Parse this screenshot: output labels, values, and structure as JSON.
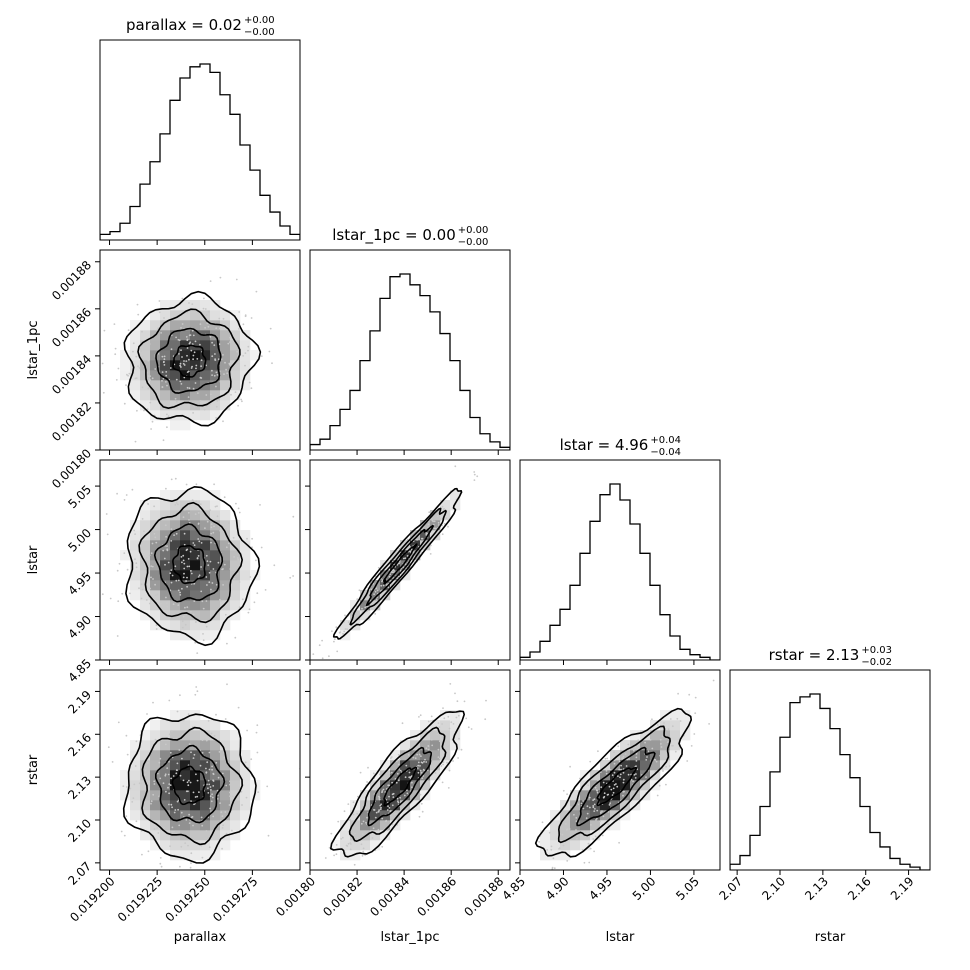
{
  "chart_data": {
    "type": "corner",
    "parameters": [
      {
        "key": "parallax",
        "label": "parallax",
        "title": "parallax = 0.02",
        "sup": "+0.00",
        "sub": "−0.00",
        "range": [
          0.019195,
          0.0193
        ],
        "ticks": [
          0.0192,
          0.019225,
          0.01925,
          0.019275
        ],
        "tick_labels": [
          "0.019200",
          "0.019225",
          "0.019250",
          "0.019275"
        ],
        "mean": 0.019242,
        "sd": 1.45e-05
      },
      {
        "key": "lstar_1pc",
        "label": "lstar_1pc",
        "title": "lstar_1pc = 0.00",
        "sup": "+0.00",
        "sub": "−0.00",
        "range": [
          0.0018,
          0.001885
        ],
        "ticks": [
          0.0018,
          0.00182,
          0.00184,
          0.00186,
          0.00188
        ],
        "tick_labels": [
          "0.00180",
          "0.00182",
          "0.00184",
          "0.00186",
          "0.00188"
        ],
        "mean": 0.001838,
        "sd": 1.15e-05
      },
      {
        "key": "lstar",
        "label": "lstar",
        "title": "lstar = 4.96",
        "sup": "+0.04",
        "sub": "−0.04",
        "range": [
          4.85,
          5.08
        ],
        "ticks": [
          4.85,
          4.9,
          4.95,
          5.0,
          5.05
        ],
        "tick_labels": [
          "4.85",
          "4.90",
          "4.95",
          "5.00",
          "5.05"
        ],
        "mean": 4.96,
        "sd": 0.037
      },
      {
        "key": "rstar",
        "label": "rstar",
        "title": "rstar = 2.13",
        "sup": "+0.03",
        "sub": "−0.02",
        "range": [
          2.065,
          2.205
        ],
        "ticks": [
          2.07,
          2.1,
          2.13,
          2.16,
          2.19
        ],
        "tick_labels": [
          "2.07",
          "2.10",
          "2.13",
          "2.16",
          "2.19"
        ],
        "mean": 2.124,
        "sd": 0.022
      }
    ],
    "histograms": {
      "parallax": [
        2,
        3,
        6,
        12,
        20,
        28,
        38,
        50,
        58,
        62,
        63,
        60,
        52,
        45,
        34,
        25,
        16,
        10,
        5,
        2
      ],
      "lstar_1pc": [
        2,
        4,
        9,
        15,
        22,
        33,
        44,
        56,
        64,
        65,
        61,
        57,
        51,
        43,
        33,
        22,
        12,
        6,
        3,
        1
      ],
      "lstar": [
        1,
        3,
        7,
        13,
        19,
        28,
        40,
        52,
        62,
        66,
        60,
        51,
        40,
        28,
        17,
        9,
        4,
        2,
        1,
        0
      ],
      "rstar": [
        2,
        5,
        12,
        22,
        34,
        46,
        58,
        60,
        61,
        56,
        49,
        40,
        32,
        22,
        13,
        8,
        4,
        2,
        1,
        0
      ]
    },
    "correlations": {
      "lstar_1pc|parallax": 0.05,
      "lstar|parallax": -0.05,
      "lstar|lstar_1pc": 0.97,
      "rstar|parallax": 0.0,
      "rstar|lstar_1pc": 0.85,
      "rstar|lstar": 0.85
    },
    "contour_levels_sigma": [
      0.5,
      1.0,
      1.5,
      2.0
    ]
  }
}
